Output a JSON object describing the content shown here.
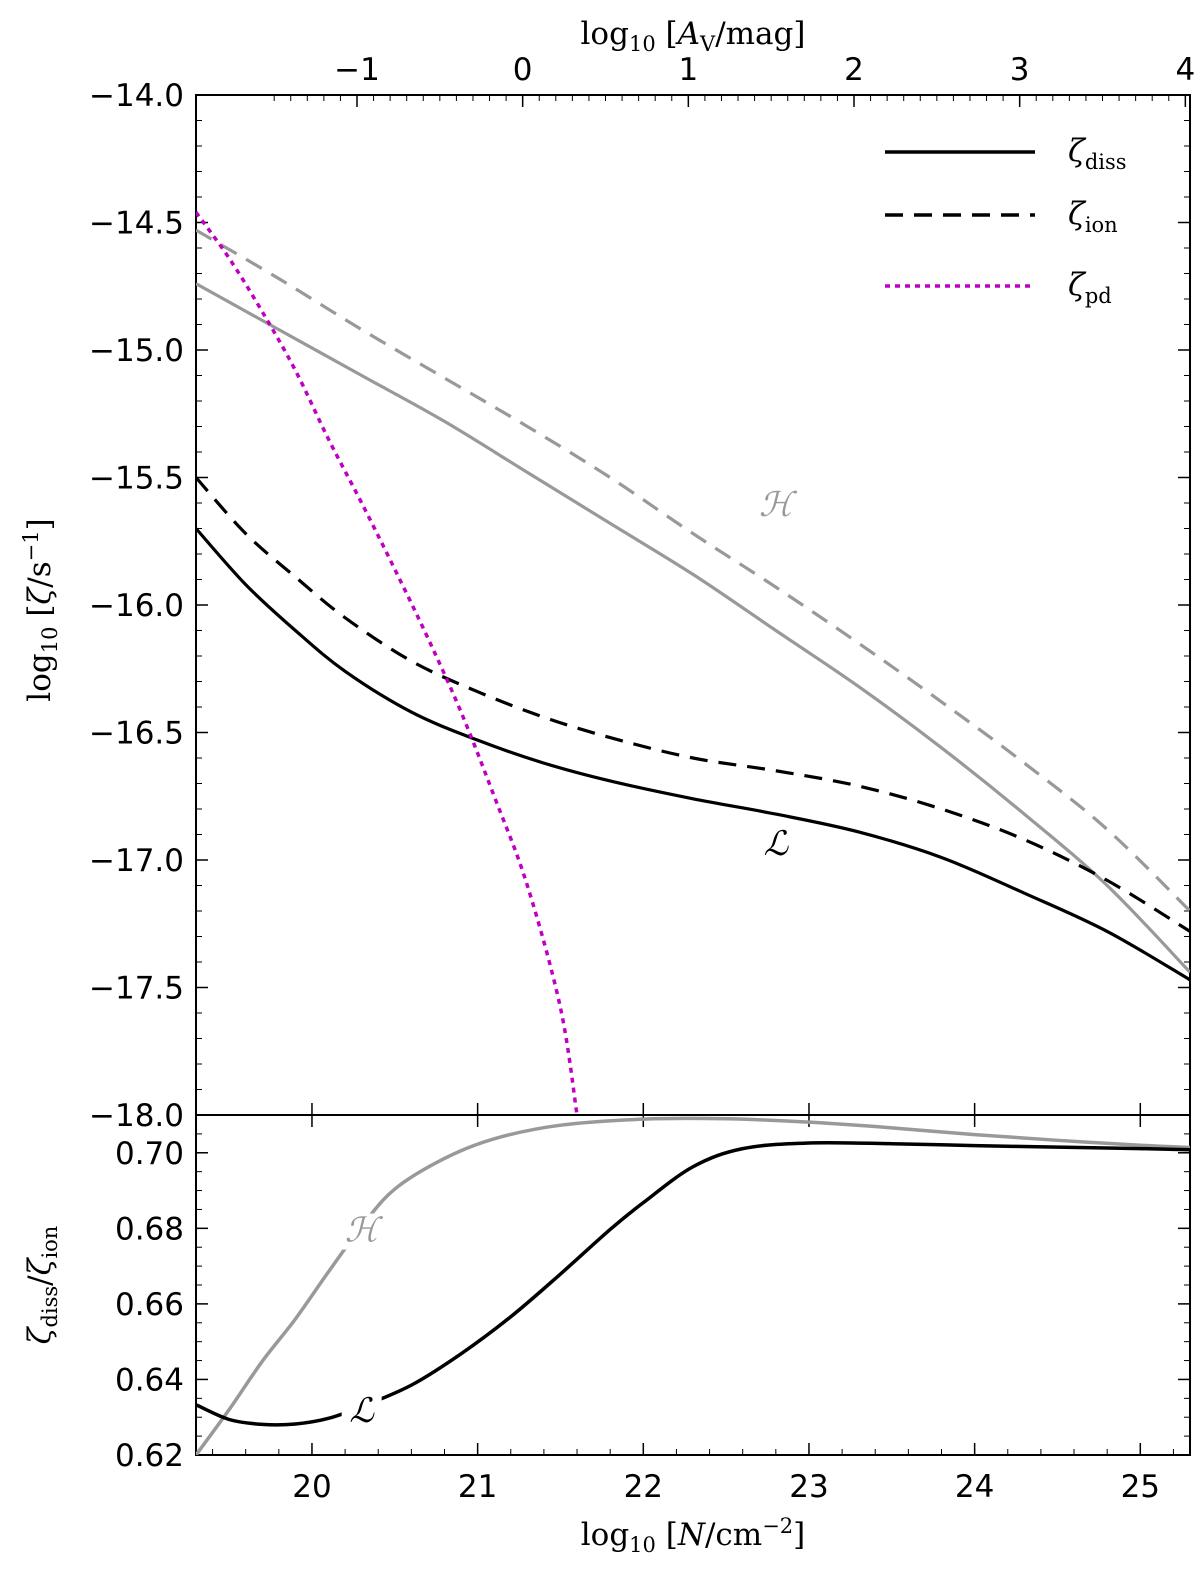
{
  "chart_data": [
    {
      "panel": "top",
      "type": "line",
      "xlabel": "log10 [N/cm^-2]",
      "ylabel": "log10 [ζ/s^-1]",
      "x2label": "log10 [A_V/mag]",
      "x2ticks": [
        "−1",
        "0",
        "1",
        "2",
        "3",
        "4"
      ],
      "x2_tick_values": [
        -1,
        0,
        1,
        2,
        3,
        4
      ],
      "xlim": [
        19.3,
        25.3
      ],
      "ylim": [
        -18.0,
        -14.0
      ],
      "yticks": [
        -14.0,
        -14.5,
        -15.0,
        -15.5,
        -16.0,
        -16.5,
        -17.0,
        -17.5,
        -18.0
      ],
      "ytick_labels": [
        "−14.0",
        "−14.5",
        "−15.0",
        "−15.5",
        "−16.0",
        "−16.5",
        "−17.0",
        "−17.5",
        "−18.0"
      ],
      "legend": {
        "placement": "top-right",
        "entries": [
          {
            "label_main": "ζ",
            "label_sub": "diss",
            "style": "solid",
            "color": "#000000"
          },
          {
            "label_main": "ζ",
            "label_sub": "ion",
            "style": "dashed",
            "color": "#000000"
          },
          {
            "label_main": "ζ",
            "label_sub": "pd",
            "style": "dotted",
            "color": "#c000c0"
          }
        ]
      },
      "annotations": [
        {
          "text": "ℋ",
          "x": 22.8,
          "y": -15.65,
          "color": "#999999"
        },
        {
          "text": "ℒ",
          "x": 22.8,
          "y": -16.98,
          "color": "#000000"
        }
      ],
      "series": [
        {
          "key": "H_diss",
          "style": "solid",
          "color": "#999999",
          "x": [
            19.3,
            19.8,
            20.3,
            20.8,
            21.3,
            21.8,
            22.3,
            22.8,
            23.3,
            23.8,
            24.3,
            24.8,
            25.3
          ],
          "y": [
            -14.74,
            -14.92,
            -15.1,
            -15.28,
            -15.48,
            -15.68,
            -15.88,
            -16.1,
            -16.32,
            -16.56,
            -16.82,
            -17.1,
            -17.44
          ]
        },
        {
          "key": "H_ion",
          "style": "dashed",
          "color": "#999999",
          "x": [
            19.3,
            19.8,
            20.3,
            20.8,
            21.3,
            21.8,
            22.3,
            22.8,
            23.3,
            23.8,
            24.3,
            24.8,
            25.3
          ],
          "y": [
            -14.53,
            -14.72,
            -14.92,
            -15.11,
            -15.3,
            -15.5,
            -15.72,
            -15.93,
            -16.15,
            -16.38,
            -16.62,
            -16.88,
            -17.2
          ]
        },
        {
          "key": "L_diss",
          "style": "solid",
          "color": "#000000",
          "x": [
            19.3,
            19.6,
            19.9,
            20.2,
            20.6,
            21.0,
            21.4,
            21.8,
            22.3,
            22.8,
            23.3,
            23.8,
            24.3,
            24.8,
            25.3
          ],
          "y": [
            -15.7,
            -15.92,
            -16.1,
            -16.26,
            -16.42,
            -16.53,
            -16.62,
            -16.69,
            -16.76,
            -16.82,
            -16.89,
            -16.99,
            -17.13,
            -17.28,
            -17.47
          ]
        },
        {
          "key": "L_ion",
          "style": "dashed",
          "color": "#000000",
          "x": [
            19.3,
            19.6,
            19.9,
            20.2,
            20.6,
            21.0,
            21.4,
            21.8,
            22.3,
            22.8,
            23.3,
            23.8,
            24.3,
            24.8,
            25.3
          ],
          "y": [
            -15.5,
            -15.72,
            -15.89,
            -16.05,
            -16.22,
            -16.34,
            -16.44,
            -16.52,
            -16.6,
            -16.65,
            -16.71,
            -16.8,
            -16.92,
            -17.08,
            -17.28
          ]
        },
        {
          "key": "pd",
          "style": "dotted",
          "color": "#c000c0",
          "x": [
            19.3,
            19.5,
            19.7,
            19.9,
            20.1,
            20.3,
            20.5,
            20.7,
            20.9,
            21.1,
            21.3,
            21.5,
            21.6
          ],
          "y": [
            -14.46,
            -14.64,
            -14.85,
            -15.08,
            -15.35,
            -15.6,
            -15.86,
            -16.13,
            -16.42,
            -16.75,
            -17.1,
            -17.58,
            -18.0
          ]
        }
      ]
    },
    {
      "panel": "bottom",
      "type": "line",
      "xlabel": "log10 [N/cm^-2]",
      "ylabel": "ζdiss/ζion",
      "xlim": [
        19.3,
        25.3
      ],
      "ylim": [
        0.62,
        0.71
      ],
      "xticks": [
        20,
        21,
        22,
        23,
        24,
        25
      ],
      "yticks": [
        0.62,
        0.64,
        0.66,
        0.68,
        0.7
      ],
      "ytick_labels": [
        "0.62",
        "0.64",
        "0.66",
        "0.68",
        "0.70"
      ],
      "annotations": [
        {
          "text": "ℋ",
          "x": 20.3,
          "y": 0.6765,
          "color": "#999999"
        },
        {
          "text": "ℒ",
          "x": 20.3,
          "y": 0.6287,
          "color": "#000000"
        }
      ],
      "series": [
        {
          "key": "H_ratio",
          "style": "solid",
          "color": "#999999",
          "x": [
            19.3,
            19.5,
            19.7,
            19.9,
            20.1,
            20.3,
            20.5,
            20.8,
            21.1,
            21.5,
            22.0,
            22.5,
            23.0,
            23.5,
            24.0,
            24.5,
            25.0,
            25.3
          ],
          "y": [
            0.62,
            0.632,
            0.6448,
            0.656,
            0.6685,
            0.6805,
            0.6904,
            0.6985,
            0.7037,
            0.7073,
            0.7089,
            0.709,
            0.7081,
            0.7066,
            0.7048,
            0.7033,
            0.702,
            0.7014
          ]
        },
        {
          "key": "L_ratio",
          "style": "solid",
          "color": "#000000",
          "x": [
            19.3,
            19.5,
            19.7,
            19.9,
            20.1,
            20.3,
            20.6,
            20.9,
            21.2,
            21.5,
            21.8,
            22.0,
            22.3,
            22.6,
            23.0,
            23.5,
            24.0,
            24.5,
            25.0,
            25.3
          ],
          "y": [
            0.6333,
            0.6294,
            0.6281,
            0.6282,
            0.6297,
            0.6328,
            0.6385,
            0.6468,
            0.6566,
            0.6679,
            0.6797,
            0.6868,
            0.6963,
            0.7011,
            0.7026,
            0.7024,
            0.7019,
            0.7015,
            0.7011,
            0.7008
          ]
        }
      ]
    }
  ]
}
